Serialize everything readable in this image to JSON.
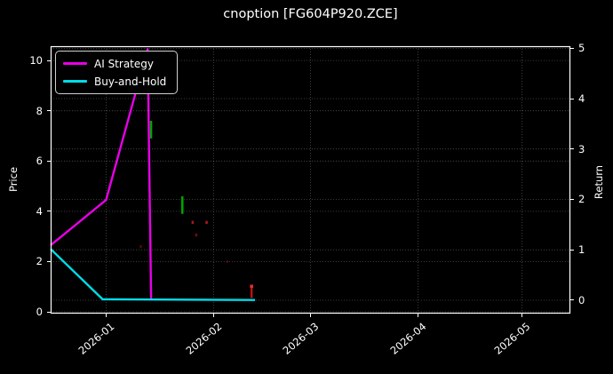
{
  "chart_data": {
    "type": "line",
    "title": "cnoption [FG604P920.ZCE]",
    "ylabel_left": "Price",
    "ylabel_right": "Return",
    "background": "#000000",
    "text_color": "#ffffff",
    "grid": true,
    "grid_style": "dotted",
    "legend_position": "upper left",
    "xlim": [
      "2025-12-16",
      "2026-05-15"
    ],
    "ylim_left": [
      -0.07,
      10.57
    ],
    "ylim_right": [
      -0.265,
      5.04
    ],
    "x_ticks": [
      {
        "label": "2026-01",
        "date": "2026-01-01"
      },
      {
        "label": "2026-02",
        "date": "2026-02-01"
      },
      {
        "label": "2026-03",
        "date": "2026-03-01"
      },
      {
        "label": "2026-04",
        "date": "2026-04-01"
      },
      {
        "label": "2026-05",
        "date": "2026-05-01"
      }
    ],
    "left_ticks": [
      0,
      2,
      4,
      6,
      8,
      10
    ],
    "right_ticks": [
      0,
      1,
      2,
      3,
      4,
      5
    ],
    "series": [
      {
        "name": "AI Strategy",
        "color": "#e800e8",
        "axis": "left",
        "points": [
          [
            "2025-12-16",
            2.65
          ],
          [
            "2026-01-01",
            4.45
          ],
          [
            "2026-01-13",
            10.45
          ],
          [
            "2026-01-14",
            0.53
          ]
        ]
      },
      {
        "name": "Buy-and-Hold",
        "color": "#00dde8",
        "axis": "left",
        "points": [
          [
            "2025-12-16",
            2.5
          ],
          [
            "2025-12-31",
            0.5
          ],
          [
            "2026-02-13",
            0.47
          ]
        ]
      }
    ],
    "candles": [
      {
        "date": "2026-01-14",
        "low": 6.9,
        "high": 7.6,
        "color": "#00a400",
        "opacity": 1
      },
      {
        "date": "2026-01-23",
        "low": 3.9,
        "high": 4.6,
        "color": "#00a400",
        "opacity": 1
      },
      {
        "date": "2026-01-26",
        "low": 3.5,
        "high": 3.62,
        "color": "#cc2222",
        "opacity": 0.8
      },
      {
        "date": "2026-01-30",
        "low": 3.5,
        "high": 3.62,
        "color": "#cc2222",
        "opacity": 0.8
      },
      {
        "date": "2026-01-27",
        "low": 3.0,
        "high": 3.12,
        "color": "#aa1111",
        "opacity": 0.65
      },
      {
        "date": "2026-01-11",
        "low": 2.55,
        "high": 2.65,
        "color": "#aa1111",
        "opacity": 0.55
      },
      {
        "date": "2026-02-05",
        "low": 1.95,
        "high": 2.05,
        "color": "#881111",
        "opacity": 0.5
      },
      {
        "date": "2026-02-12",
        "low": 0.55,
        "high": 1.08,
        "color": "#bb1111",
        "opacity": 1,
        "cap": true
      }
    ]
  }
}
